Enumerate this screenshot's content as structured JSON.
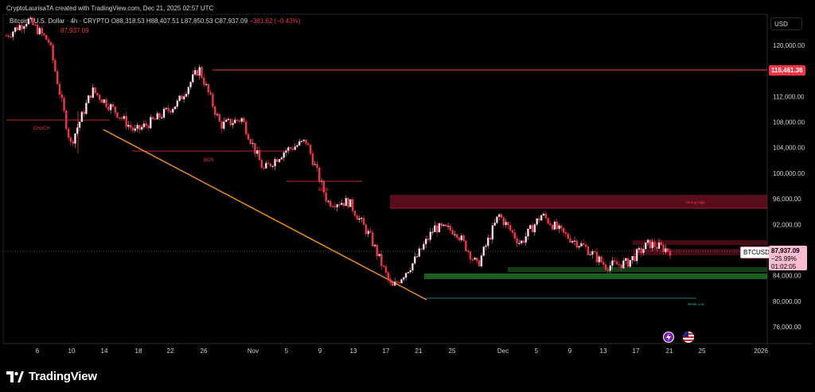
{
  "header": {
    "author_line": "CryptoLaurisaTA created with TradingView.com, Dec 21, 2025 02:57 UTC",
    "symbol_line": "Bitcoin / U.S. Dollar · 4h · CRYPTO",
    "open": "O88,318.53",
    "high": "H88,407.51",
    "low": "L87,850.53",
    "close": "C87,937.09",
    "change": "−381.62 (−0.43%)",
    "second_line": "87,937.09"
  },
  "price_axis": {
    "currency_button": "USD",
    "ticks": [
      "120,000.00",
      "116,000.00",
      "112,000.00",
      "108,000.00",
      "104,000.00",
      "100,000.00",
      "96,000.00",
      "92,000.00",
      "88,000.00",
      "84,000.00",
      "80,000.00",
      "76,000.00"
    ],
    "resistance_tag": "116,461.36",
    "last_price_tag": "87,937.09",
    "pct_change_tag": "−25.99%",
    "countdown_tag": "01:02:05",
    "symbol_tag": "BTCUSD"
  },
  "time_axis": {
    "ticks": [
      "6",
      "10",
      "14",
      "18",
      "22",
      "26",
      "Nov",
      "5",
      "9",
      "13",
      "17",
      "21",
      "25",
      "Dec",
      "5",
      "9",
      "13",
      "17",
      "21",
      "25",
      "2026"
    ]
  },
  "annotations": {
    "choch_left": "CHoCH",
    "bos_1": "BOS",
    "bos_2": "BOS",
    "strong_high": "Strong High",
    "weak_low": "Weak Low"
  },
  "colors": {
    "bull": "#f48fb1",
    "bear": "#f23645",
    "trendline": "#ff9800",
    "supply_zone": "#5c0f1b",
    "demand_zone": "#1b5e20",
    "resistance_line": "#f23645"
  },
  "footer": {
    "brand": "TradingView"
  },
  "chart_data": {
    "type": "candlestick",
    "title": "Bitcoin / U.S. Dollar · 4h · CRYPTO",
    "ylim": [
      73500,
      124500
    ],
    "y_axis_side": "right",
    "grid": false,
    "key_points": [
      {
        "x": "Oct 3",
        "y": 121500
      },
      {
        "x": "Oct 6",
        "y": 124000
      },
      {
        "x": "Oct 9",
        "y": 120500
      },
      {
        "x": "Oct 10",
        "y": 104500
      },
      {
        "x": "Oct 12",
        "y": 113000
      },
      {
        "x": "Oct 14",
        "y": 110000
      },
      {
        "x": "Oct 17",
        "y": 106500
      },
      {
        "x": "Oct 21",
        "y": 108500
      },
      {
        "x": "Oct 25",
        "y": 111000
      },
      {
        "x": "Oct 27",
        "y": 116400
      },
      {
        "x": "Oct 30",
        "y": 107500
      },
      {
        "x": "Nov 3",
        "y": 108500
      },
      {
        "x": "Nov 5",
        "y": 100500
      },
      {
        "x": "Nov 8",
        "y": 103500
      },
      {
        "x": "Nov 12",
        "y": 105000
      },
      {
        "x": "Nov 14",
        "y": 95500
      },
      {
        "x": "Nov 16",
        "y": 95500
      },
      {
        "x": "Nov 19",
        "y": 90000
      },
      {
        "x": "Nov 21",
        "y": 82000
      },
      {
        "x": "Nov 23",
        "y": 86000
      },
      {
        "x": "Nov 26",
        "y": 91500
      },
      {
        "x": "Nov 29",
        "y": 91000
      },
      {
        "x": "Dec 1",
        "y": 85500
      },
      {
        "x": "Dec 3",
        "y": 93500
      },
      {
        "x": "Dec 6",
        "y": 89000
      },
      {
        "x": "Dec 9",
        "y": 93500
      },
      {
        "x": "Dec 11",
        "y": 90500
      },
      {
        "x": "Dec 14",
        "y": 88500
      },
      {
        "x": "Dec 16",
        "y": 85500
      },
      {
        "x": "Dec 18",
        "y": 86000
      },
      {
        "x": "Dec 19",
        "y": 89000
      },
      {
        "x": "Dec 21",
        "y": 87937
      }
    ],
    "levels": [
      {
        "name": "CHoCH",
        "price": 108800
      },
      {
        "name": "BOS",
        "price": 104000
      },
      {
        "name": "BOS",
        "price": 99000
      },
      {
        "name": "Strong High",
        "price": 94500
      },
      {
        "name": "Weak Low",
        "price": 80500
      },
      {
        "name": "Resistance",
        "price": 116461.36
      }
    ],
    "zones": [
      {
        "type": "supply",
        "from": 94600,
        "to": 96700
      },
      {
        "type": "demand",
        "from": 83500,
        "to": 84600
      }
    ],
    "trendline": {
      "from": {
        "x": "Oct 14",
        "y": 107000
      },
      "to": {
        "x": "Nov 22",
        "y": 80300
      }
    }
  }
}
